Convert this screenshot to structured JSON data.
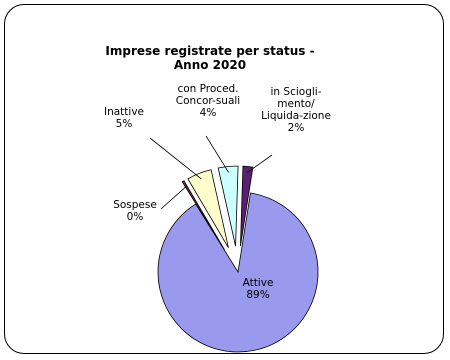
{
  "chart_data": {
    "type": "pie",
    "title_line1": "Imprese registrate per status -",
    "title_line2": "Anno 2020",
    "slices": [
      {
        "name_lines": [
          "Attive"
        ],
        "pct_label": "89%",
        "value": 89,
        "color": "#9999ee"
      },
      {
        "name_lines": [
          "Sospese"
        ],
        "pct_label": "0%",
        "value": 0.4,
        "color": "#7a2a3a"
      },
      {
        "name_lines": [
          "Inattive"
        ],
        "pct_label": "5%",
        "value": 5,
        "color": "#ffffcc"
      },
      {
        "name_lines": [
          "con Proced.",
          "Concor-suali"
        ],
        "pct_label": "4%",
        "value": 4,
        "color": "#ccffff"
      },
      {
        "name_lines": [
          "in Sciogli-",
          "mento/",
          "Liquida-zione"
        ],
        "pct_label": "2%",
        "value": 2,
        "color": "#5a1f6e"
      }
    ]
  }
}
